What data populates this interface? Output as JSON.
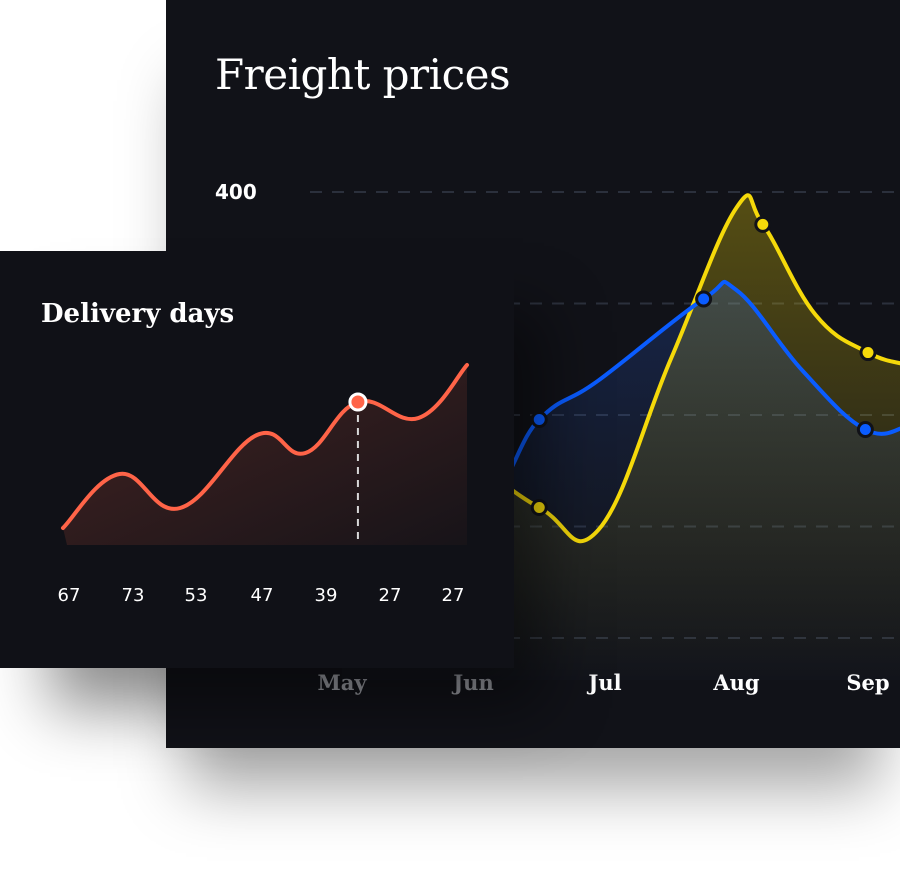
{
  "chart_data": [
    {
      "type": "area",
      "title": "Freight prices",
      "x_tick_labels": [
        "May",
        "Jun",
        "Jul",
        "Aug",
        "Sep"
      ],
      "x_tick_values": [
        5,
        6,
        7,
        8,
        9
      ],
      "y_tick_labels": [
        "400"
      ],
      "ylim": [
        0,
        400
      ],
      "grid": true,
      "gridline_values": [
        0,
        100,
        200,
        300,
        400
      ],
      "series": [
        {
          "color": "#f5d90a",
          "x": [
            5.0,
            5.8,
            6.5,
            6.95,
            7.5,
            8.0,
            8.2,
            8.6,
            9.0,
            9.3
          ],
          "y": [
            200,
            170,
            117,
            97,
            250,
            386,
            371,
            290,
            256,
            245
          ],
          "markers": [
            2,
            6,
            8
          ]
        },
        {
          "color": "#0a5cff",
          "x": [
            5.0,
            6.0,
            6.5,
            6.95,
            7.75,
            8.0,
            8.5,
            8.98,
            9.3
          ],
          "y": [
            150,
            120,
            196,
            231,
            304,
            312,
            240,
            187,
            190
          ],
          "markers": [
            2,
            4,
            7
          ]
        }
      ]
    },
    {
      "type": "area",
      "title": "Delivery days",
      "tick_labels": [
        "67",
        "73",
        "53",
        "47",
        "39",
        "27",
        "27"
      ],
      "color": "#ff6448",
      "x": [
        0,
        14,
        29,
        48,
        60,
        73,
        88,
        100
      ],
      "y": [
        17,
        71,
        37,
        110,
        92,
        143,
        127,
        180
      ],
      "ylim": [
        0,
        200
      ],
      "highlight_index": 5
    }
  ]
}
